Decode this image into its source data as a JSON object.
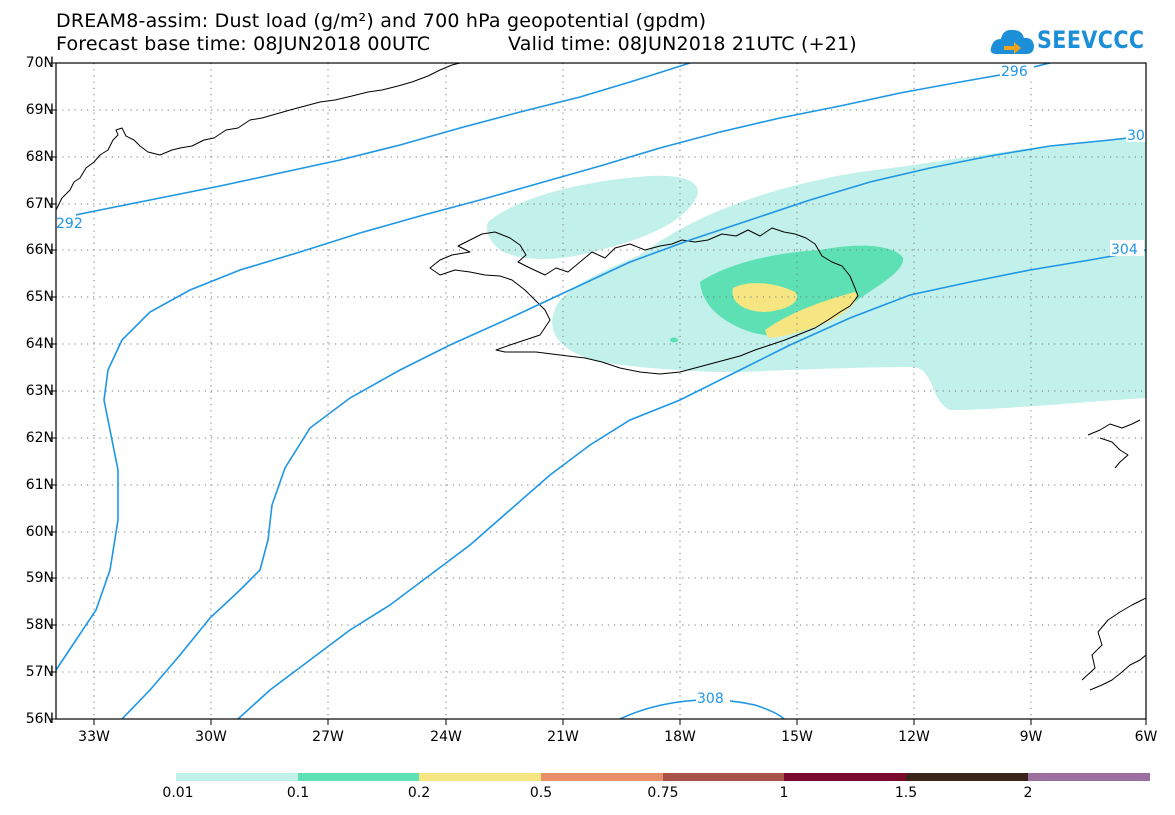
{
  "title_line1": "DREAM8-assim: Dust load (g/m²) and 700 hPa geopotential (gpdm)",
  "title_line2_left": "Forecast base time: 08JUN2018 00UTC",
  "title_line2_right": "Valid time: 08JUN2018 21UTC (+21)",
  "logo_text": "SEEVCCC",
  "logo_color": "#1c8fd8",
  "lat_labels": [
    "70N",
    "69N",
    "68N",
    "67N",
    "66N",
    "65N",
    "64N",
    "63N",
    "62N",
    "61N",
    "60N",
    "59N",
    "58N",
    "57N",
    "56N"
  ],
  "lon_labels": [
    "33W",
    "30W",
    "27W",
    "24W",
    "21W",
    "18W",
    "15W",
    "12W",
    "9W",
    "6W"
  ],
  "contour_labels": [
    "296",
    "30",
    "292",
    "304",
    "308"
  ],
  "contour_color": "#1e96e6",
  "colorbar": {
    "labels": [
      "0.01",
      "0.1",
      "0.2",
      "0.5",
      "0.75",
      "1",
      "1.5",
      "2"
    ],
    "colors": [
      "#c2f0ea",
      "#5ee0b5",
      "#f5e682",
      "#e8906a",
      "#a8524a",
      "#7a0a2e",
      "#3d2418",
      "#9b6fa0"
    ]
  }
}
